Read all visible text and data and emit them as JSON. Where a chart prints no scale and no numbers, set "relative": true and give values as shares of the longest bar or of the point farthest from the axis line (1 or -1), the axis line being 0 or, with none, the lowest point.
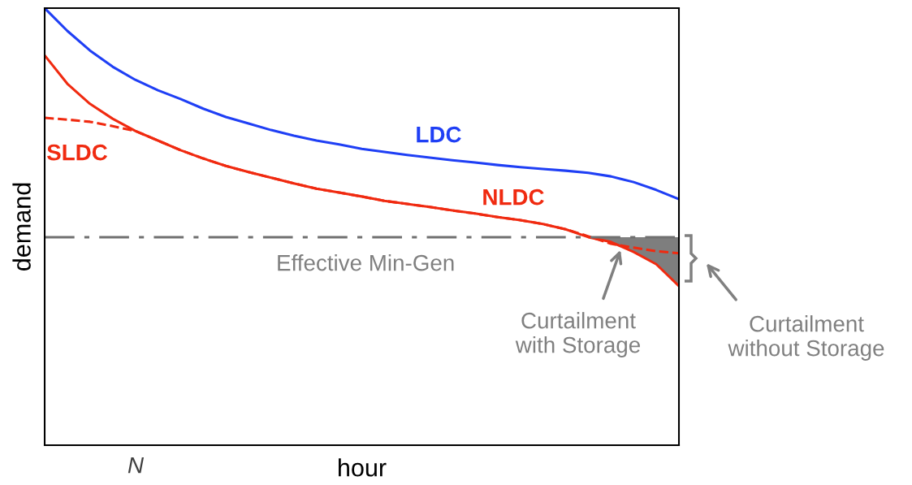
{
  "chart_data": {
    "type": "line",
    "relative": true,
    "xlabel": "hour",
    "ylabel": "demand",
    "categories": [
      null,
      null,
      null,
      null,
      null,
      null,
      null,
      null,
      null,
      null,
      null,
      null,
      null,
      null,
      null,
      null,
      null,
      null,
      null,
      null,
      null,
      null,
      null,
      null,
      null,
      null,
      null,
      null,
      null
    ],
    "series": [
      {
        "name": "LDC",
        "color": "#1f3ff5",
        "line_style": "solid",
        "values": [
          1.0,
          0.948,
          0.903,
          0.866,
          0.836,
          0.812,
          0.792,
          0.77,
          0.751,
          0.736,
          0.721,
          0.708,
          0.697,
          0.688,
          0.678,
          0.671,
          0.664,
          0.658,
          0.652,
          0.647,
          0.641,
          0.636,
          0.632,
          0.628,
          0.623,
          0.615,
          0.602,
          0.584,
          0.563
        ]
      },
      {
        "name": "NLDC",
        "color": "#f02a10",
        "line_style": "solid",
        "values": [
          0.892,
          0.827,
          0.781,
          0.747,
          0.719,
          0.697,
          0.675,
          0.656,
          0.639,
          0.625,
          0.612,
          0.599,
          0.587,
          0.578,
          0.569,
          0.559,
          0.552,
          0.545,
          0.537,
          0.53,
          0.522,
          0.515,
          0.506,
          0.494,
          0.476,
          0.465,
          0.442,
          0.414,
          0.364
        ]
      },
      {
        "name": "SLDC",
        "color": "#f02a10",
        "line_style": "dashed",
        "values": [
          0.749,
          0.745,
          0.74,
          0.73,
          0.719,
          0.697,
          0.675,
          0.656,
          0.639,
          0.625,
          0.612,
          0.599,
          0.587,
          0.578,
          0.569,
          0.559,
          0.552,
          0.545,
          0.537,
          0.53,
          0.522,
          0.515,
          0.506,
          0.494,
          0.478,
          0.461,
          0.452,
          0.444,
          0.439
        ]
      }
    ],
    "ref_lines": [
      {
        "axis": "y",
        "value": 0.476,
        "label": "Effective Min-Gen",
        "color": "#707070",
        "line_style": "dashdot"
      }
    ],
    "annotations": [
      "N",
      "Curtailment\nwith Storage",
      "Curtailment\nwithout Storage"
    ]
  }
}
